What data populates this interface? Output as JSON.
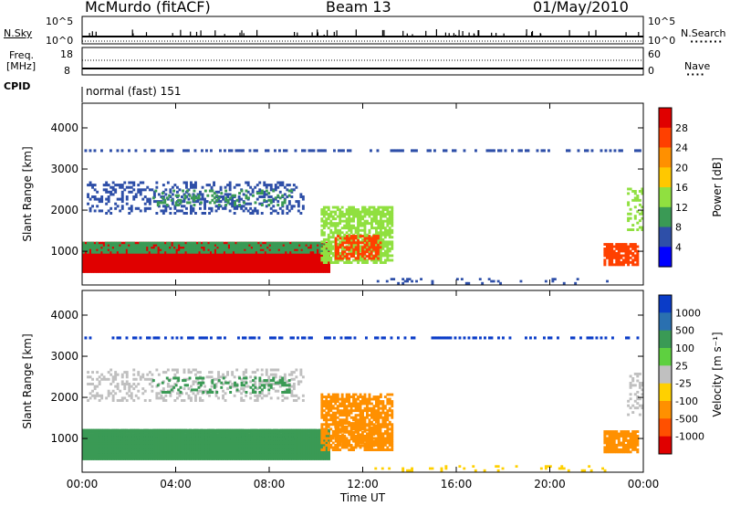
{
  "header": {
    "station": "McMurdo (fitACF)",
    "beam": "Beam 13",
    "date": "01/May/2010"
  },
  "panels": {
    "nsky_label": "N.Sky",
    "nsearch_label": "N.Search",
    "nsearch_dots": "·······",
    "freq_label_1": "Freq.",
    "freq_label_2": "[MHz]",
    "nave_label": "Nave",
    "nave_dots": "····",
    "cpid_label": "CPID",
    "cpid_value": "normal (fast) 151",
    "nsky_ticks": [
      "10^5",
      "10^0"
    ],
    "nsearch_ticks": [
      "10^5",
      "10^0"
    ],
    "freq_ticks": [
      "18",
      "8"
    ],
    "nave_ticks": [
      "60",
      "0"
    ]
  },
  "chart_data": [
    {
      "type": "heatmap",
      "name": "power",
      "xlabel": "Time UT",
      "ylabel": "Slant Range [km]",
      "x_ticks": [
        "00:00",
        "04:00",
        "08:00",
        "12:00",
        "16:00",
        "20:00",
        "00:00"
      ],
      "xlim_hours": [
        0,
        24
      ],
      "ylim_km": [
        180,
        4600
      ],
      "y_ticks": [
        1000,
        2000,
        3000,
        4000
      ],
      "colorbar_label": "Power [dB]",
      "colorbar_ticks": [
        "28",
        "24",
        "20",
        "16",
        "12",
        "8",
        "4"
      ],
      "colorbar_colors": [
        "#e00000",
        "#ff4000",
        "#ff9000",
        "#ffc800",
        "#90e040",
        "#3a9a55",
        "#2e4fa8",
        "#0000ff"
      ]
    },
    {
      "type": "heatmap",
      "name": "velocity",
      "xlabel": "Time UT",
      "ylabel": "Slant Range [km]",
      "x_ticks": [
        "00:00",
        "04:00",
        "08:00",
        "12:00",
        "16:00",
        "20:00",
        "00:00"
      ],
      "xlim_hours": [
        0,
        24
      ],
      "ylim_km": [
        180,
        4600
      ],
      "y_ticks": [
        1000,
        2000,
        3000,
        4000
      ],
      "colorbar_label": "Velocity [m s⁻¹]",
      "colorbar_ticks": [
        "1000",
        "500",
        "100",
        "25",
        "-25",
        "-100",
        "-500",
        "-1000"
      ],
      "colorbar_colors": [
        "#0a3cc8",
        "#2a70b0",
        "#3a9a55",
        "#5ed040",
        "#c0c0c0",
        "#ffd000",
        "#ff9000",
        "#ff5000",
        "#e00000"
      ]
    }
  ],
  "echo_regions": [
    {
      "h0": 0,
      "h1": 10.6,
      "r0": 480,
      "r1": 1230,
      "power_color": "#e00000",
      "vel_color": "#3a9a55",
      "density": 1.0
    },
    {
      "h0": 0,
      "h1": 10.6,
      "r0": 950,
      "r1": 1230,
      "power_color": "#3a9a55",
      "vel_color": "#3a9a55",
      "density": 0.8
    },
    {
      "h0": 10.2,
      "h1": 13.3,
      "r0": 700,
      "r1": 2100,
      "power_color": "#90e040",
      "vel_color": "#ff9000",
      "density": 0.75
    },
    {
      "h0": 10.8,
      "h1": 12.8,
      "r0": 800,
      "r1": 1400,
      "power_color": "#ff4000",
      "vel_color": "#ff9000",
      "density": 0.6
    },
    {
      "h0": 0.2,
      "h1": 9.5,
      "r0": 1900,
      "r1": 2700,
      "power_color": "#2e4fa8",
      "vel_color": "#c0c0c0",
      "density": 0.3
    },
    {
      "h0": 3.0,
      "h1": 9.0,
      "r0": 2100,
      "r1": 2500,
      "power_color": "#3a9a55",
      "vel_color": "#3a9a55",
      "density": 0.25
    },
    {
      "h0": 0,
      "h1": 24,
      "r0": 3420,
      "r1": 3480,
      "power_color": "#2e4fa8",
      "vel_color": "#0a3cc8",
      "density": 0.45
    },
    {
      "h0": 22.3,
      "h1": 23.8,
      "r0": 650,
      "r1": 1200,
      "power_color": "#ff4000",
      "vel_color": "#ff9000",
      "density": 0.85
    },
    {
      "h0": 23.3,
      "h1": 24,
      "r0": 1500,
      "r1": 2600,
      "power_color": "#90e040",
      "vel_color": "#c0c0c0",
      "density": 0.3
    },
    {
      "h0": 12.5,
      "h1": 22.5,
      "r0": 200,
      "r1": 350,
      "power_color": "#2e4fa8",
      "vel_color": "#ffd000",
      "density": 0.12
    }
  ]
}
